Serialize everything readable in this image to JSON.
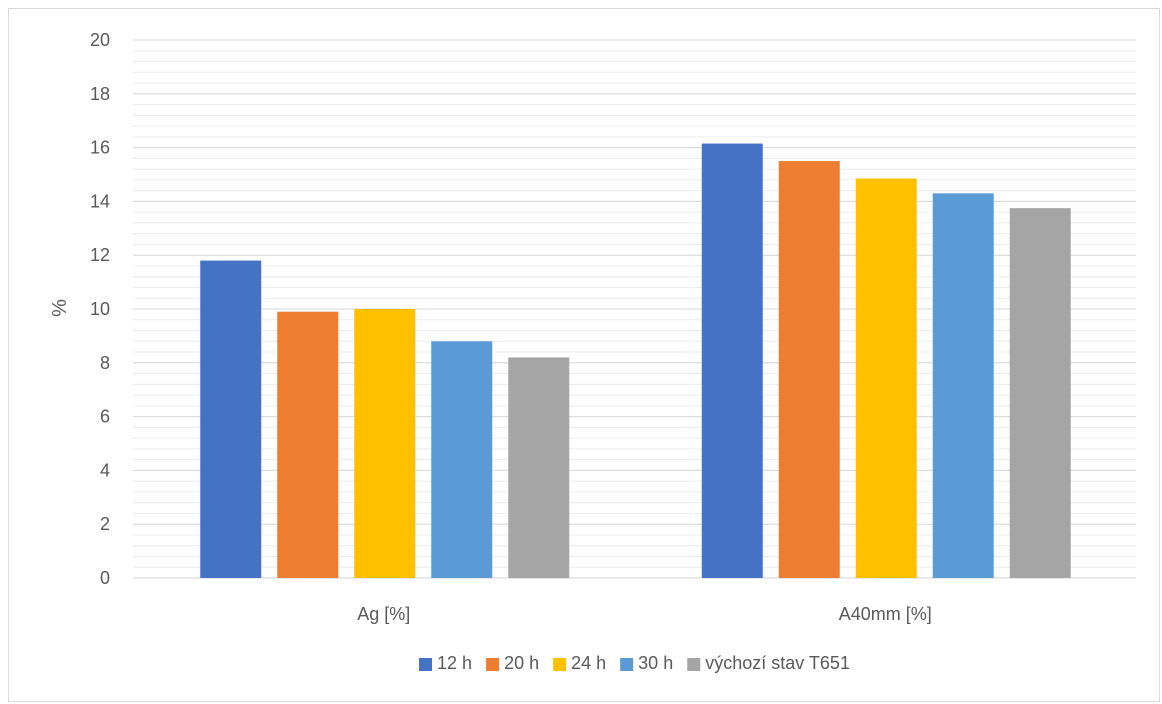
{
  "chart_data": {
    "type": "bar",
    "title": "",
    "xlabel": "",
    "ylabel": "%",
    "ylim": [
      0,
      20
    ],
    "y_ticks": [
      0,
      2,
      4,
      6,
      8,
      10,
      12,
      14,
      16,
      18,
      20
    ],
    "grid": true,
    "minor_grid": true,
    "legend_position": "bottom",
    "categories": [
      "Ag [%]",
      "A40mm [%]"
    ],
    "series": [
      {
        "name": "12 h",
        "color": "#4472C4",
        "values": [
          11.8,
          16.15
        ]
      },
      {
        "name": "20 h",
        "color": "#ED7D31",
        "values": [
          9.9,
          15.5
        ]
      },
      {
        "name": "24 h",
        "color": "#FFC000",
        "values": [
          10.0,
          14.85
        ]
      },
      {
        "name": "30 h",
        "color": "#5B9BD5",
        "values": [
          8.8,
          14.3
        ]
      },
      {
        "name": "výchozí stav T651",
        "color": "#A5A5A5",
        "values": [
          8.2,
          13.75
        ]
      }
    ]
  }
}
